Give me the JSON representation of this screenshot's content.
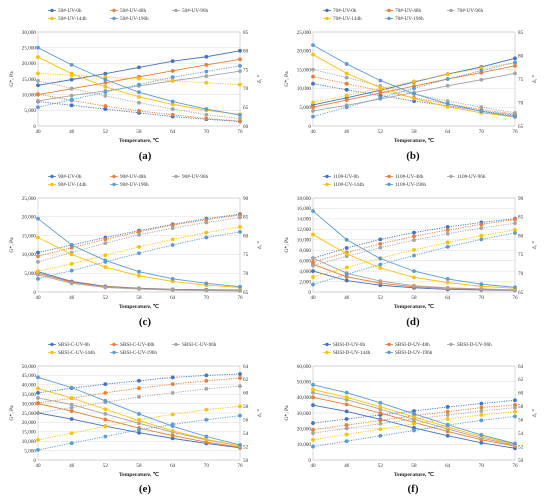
{
  "colors": {
    "s1": "#4472c4",
    "s2": "#ed7d31",
    "s3": "#a5a5a5",
    "s4": "#ffc000",
    "s5": "#5b9bd5"
  },
  "chart_data": [
    {
      "type": "line",
      "caption": "(a)",
      "xlabel": "Temperature, ℃",
      "ylabel": "G*, Pa",
      "y2label": "δ, °",
      "x": [
        40,
        46,
        52,
        58,
        64,
        70,
        76
      ],
      "ylim": [
        0,
        30000
      ],
      "ystep": 5000,
      "y2lim": [
        60,
        85
      ],
      "y2step": 5,
      "legend_cols": 3,
      "series": [
        {
          "name": "50#-UV-0h",
          "g": [
            13000,
            14800,
            16700,
            18700,
            20700,
            22100,
            24000
          ],
          "d": [
            66.5,
            65.5,
            64.5,
            63.5,
            62.5,
            61.8,
            61.2
          ]
        },
        {
          "name": "50#-UV-48h",
          "g": [
            10000,
            11900,
            13800,
            15700,
            17600,
            19500,
            21300
          ],
          "d": [
            68.5,
            66.8,
            65.3,
            64,
            63,
            62,
            61.3
          ]
        },
        {
          "name": "50#-UV-96h",
          "g": [
            8000,
            9700,
            11200,
            12800,
            14400,
            15900,
            17500
          ],
          "d": [
            72,
            70,
            68,
            66.2,
            64.5,
            63,
            62
          ]
        },
        {
          "name": "50#-UV-144h",
          "g": [
            22000,
            16700,
            12500,
            9300,
            6900,
            5000,
            3700
          ],
          "d": [
            74,
            73.5,
            73,
            72.6,
            72,
            71.5,
            71
          ]
        },
        {
          "name": "50#-UV-196h",
          "g": [
            25000,
            19500,
            14800,
            10800,
            7800,
            5400,
            3500
          ],
          "d": [
            65,
            67,
            69,
            71,
            73,
            74.5,
            76
          ]
        }
      ]
    },
    {
      "type": "line",
      "caption": "(b)",
      "xlabel": "Temperature, ℃",
      "ylabel": "G*, Pa",
      "y2label": "δ, °",
      "x": [
        40,
        46,
        52,
        58,
        64,
        70,
        76
      ],
      "ylim": [
        0,
        25000
      ],
      "ystep": 5000,
      "y2lim": [
        65,
        85
      ],
      "y2step": 5,
      "legend_cols": 3,
      "series": [
        {
          "name": "70#-UV-0h",
          "g": [
            5600,
            7500,
            9500,
            11700,
            13800,
            15700,
            18000
          ],
          "d": [
            74,
            72.7,
            71.5,
            70.3,
            69.3,
            68.2,
            67.3
          ]
        },
        {
          "name": "70#-UV-48h",
          "g": [
            5000,
            6900,
            8800,
            10600,
            12500,
            14200,
            16000
          ],
          "d": [
            75.5,
            74,
            72.5,
            71,
            69.7,
            68.5,
            67.5
          ]
        },
        {
          "name": "70#-UV-96h",
          "g": [
            4000,
            5500,
            7200,
            8900,
            10700,
            12300,
            14000
          ],
          "d": [
            77,
            75.3,
            73.5,
            71.8,
            70.3,
            69,
            67.8
          ]
        },
        {
          "name": "70#-UV-144h",
          "g": [
            19000,
            14000,
            10200,
            7300,
            5100,
            3500,
            2400
          ],
          "d": [
            70,
            71.5,
            73,
            74.5,
            76,
            77.3,
            78.5
          ]
        },
        {
          "name": "70#-UV-196h",
          "g": [
            21500,
            16500,
            12100,
            8600,
            5900,
            3900,
            2500
          ],
          "d": [
            67,
            69,
            71,
            73,
            75,
            76.8,
            78.5
          ]
        }
      ]
    },
    {
      "type": "line",
      "caption": "(c)",
      "xlabel": "Temperature, ℃",
      "ylabel": "G*, Pa",
      "y2label": "δ, °",
      "x": [
        40,
        46,
        52,
        58,
        64,
        70,
        76
      ],
      "ylim": [
        0,
        25000
      ],
      "ystep": 5000,
      "y2lim": [
        65,
        90
      ],
      "y2step": 5,
      "legend_cols": 3,
      "series": [
        {
          "name": "90#-UV-0h",
          "g": [
            5400,
            2800,
            1500,
            1000,
            700,
            600,
            500
          ],
          "d": [
            75.5,
            77.5,
            79.5,
            81.3,
            83,
            84.5,
            85.7
          ]
        },
        {
          "name": "90#-UV-48h",
          "g": [
            5000,
            2600,
            1400,
            900,
            600,
            500,
            400
          ],
          "d": [
            74.5,
            76.8,
            79,
            81,
            82.8,
            84.2,
            85.5
          ]
        },
        {
          "name": "90#-UV-96h",
          "g": [
            4600,
            2300,
            1200,
            800,
            500,
            400,
            300
          ],
          "d": [
            73,
            75.5,
            78,
            80.2,
            82,
            83.5,
            84.8
          ]
        },
        {
          "name": "90#-UV-144h",
          "g": [
            14500,
            10000,
            6600,
            4300,
            2800,
            1800,
            1200
          ],
          "d": [
            70.5,
            72.5,
            74.8,
            77,
            79,
            80.8,
            82.3
          ]
        },
        {
          "name": "90#-UV-196h",
          "g": [
            19500,
            12500,
            8400,
            5400,
            3500,
            2300,
            1400
          ],
          "d": [
            68.5,
            70.7,
            73,
            75.3,
            77.5,
            79.5,
            81
          ]
        }
      ]
    },
    {
      "type": "line",
      "caption": "(d)",
      "xlabel": "Temperature, ℃",
      "ylabel": "G*, Pa",
      "y2label": "δ, °",
      "x": [
        40,
        46,
        52,
        58,
        64,
        70,
        76
      ],
      "ylim": [
        0,
        18000
      ],
      "ystep": 2000,
      "y2lim": [
        65,
        90
      ],
      "y2step": 5,
      "legend_cols": 3,
      "series": [
        {
          "name": "110#-UV-0h",
          "g": [
            4000,
            2200,
            1300,
            800,
            500,
            400,
            300
          ],
          "d": [
            74,
            76.7,
            79,
            80.8,
            82.3,
            83.5,
            84.5
          ]
        },
        {
          "name": "110#-UV-48h",
          "g": [
            5300,
            2900,
            1700,
            1000,
            700,
            500,
            400
          ],
          "d": [
            73,
            75.5,
            77.8,
            79.8,
            81.5,
            83,
            84.3
          ]
        },
        {
          "name": "110#-UV-96h",
          "g": [
            6500,
            3600,
            2100,
            1200,
            800,
            600,
            400
          ],
          "d": [
            72,
            74.5,
            76.8,
            78.8,
            80.5,
            82,
            83.3
          ]
        },
        {
          "name": "110#-UV-144h",
          "g": [
            11000,
            7300,
            4600,
            2800,
            1800,
            1100,
            700
          ],
          "d": [
            69,
            71.5,
            74,
            76.2,
            78.2,
            80,
            81.5
          ]
        },
        {
          "name": "110#-UV-196h",
          "g": [
            15500,
            10000,
            6400,
            4000,
            2500,
            1500,
            900
          ],
          "d": [
            67,
            69.7,
            72.3,
            74.7,
            77,
            79,
            80.7
          ]
        }
      ]
    },
    {
      "type": "line",
      "caption": "(e)",
      "xlabel": "Temperature, ℃",
      "ylabel": "G*, Pa",
      "y2label": "δ, °",
      "x": [
        40,
        46,
        52,
        58,
        64,
        70,
        76
      ],
      "ylim": [
        0,
        50000
      ],
      "ystep": 5000,
      "y2lim": [
        50,
        64
      ],
      "y2step": 2,
      "legend_cols": 3,
      "series": [
        {
          "name": "SBSI-C-UV-0h",
          "g": [
            25000,
            21800,
            18000,
            14500,
            11500,
            8800,
            6500
          ],
          "d": [
            60,
            60.7,
            61.3,
            61.8,
            62.3,
            62.6,
            62.8
          ]
        },
        {
          "name": "SBSI-C-UV-48h",
          "g": [
            30000,
            26000,
            21500,
            17000,
            13000,
            9500,
            6800
          ],
          "d": [
            58.5,
            59.2,
            60,
            60.7,
            61.3,
            61.8,
            62.2
          ]
        },
        {
          "name": "SBSI-C-UV-96h",
          "g": [
            33000,
            29500,
            24500,
            19500,
            14800,
            10700,
            7500
          ],
          "d": [
            57,
            57.8,
            58.6,
            59.4,
            60,
            60.6,
            61
          ]
        },
        {
          "name": "SBSI-C-UV-144h",
          "g": [
            38000,
            33000,
            27000,
            21000,
            15500,
            11000,
            7500
          ],
          "d": [
            53,
            54,
            55,
            56,
            56.8,
            57.5,
            58
          ]
        },
        {
          "name": "SBSI-C-UV-196h",
          "g": [
            44000,
            38500,
            31500,
            24500,
            18000,
            12500,
            8000
          ],
          "d": [
            51.5,
            52.5,
            53.5,
            54.5,
            55.3,
            56,
            56.6
          ]
        }
      ]
    },
    {
      "type": "line",
      "caption": "(f)",
      "xlabel": "Temperature, ℃",
      "ylabel": "G*, Pa",
      "y2label": "δ, °",
      "x": [
        40,
        46,
        52,
        58,
        64,
        70,
        76
      ],
      "ylim": [
        0,
        60000
      ],
      "ystep": 10000,
      "y2lim": [
        50,
        64
      ],
      "y2step": 2,
      "legend_cols": 3,
      "series": [
        {
          "name": "SBSI-D-UV-0h",
          "g": [
            35000,
            31000,
            26000,
            20500,
            15500,
            11000,
            7500
          ],
          "d": [
            55.5,
            56.1,
            56.7,
            57.3,
            57.9,
            58.4,
            58.9
          ]
        },
        {
          "name": "SBSI-D-UV-48h",
          "g": [
            40000,
            35500,
            30000,
            24000,
            18200,
            13000,
            8800
          ],
          "d": [
            54.5,
            55.2,
            55.9,
            56.6,
            57.2,
            57.8,
            58.2
          ]
        },
        {
          "name": "SBSI-D-UV-96h",
          "g": [
            43000,
            38500,
            32500,
            26000,
            19800,
            14000,
            9500
          ],
          "d": [
            54,
            54.7,
            55.4,
            56.1,
            56.7,
            57.3,
            57.8
          ]
        },
        {
          "name": "SBSI-D-UV-144h",
          "g": [
            45000,
            40000,
            34000,
            27500,
            21000,
            15000,
            10000
          ],
          "d": [
            53,
            53.8,
            54.6,
            55.4,
            56.1,
            56.7,
            57.2
          ]
        },
        {
          "name": "SBSI-D-UV-196h",
          "g": [
            48000,
            43000,
            36500,
            29500,
            22500,
            16000,
            10500
          ],
          "d": [
            52,
            52.8,
            53.6,
            54.4,
            55.2,
            55.9,
            56.5
          ]
        }
      ]
    }
  ]
}
